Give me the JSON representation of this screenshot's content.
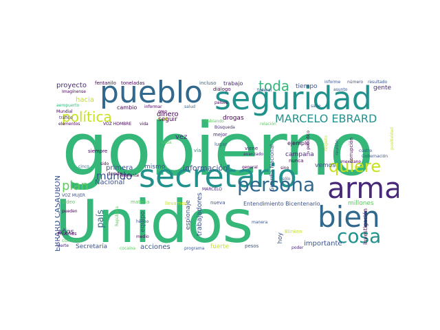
{
  "palette": {
    "green": "#35b779",
    "teal": "#21918c",
    "blue": "#31688e",
    "navy": "#3b528b",
    "purple": "#440154",
    "violet": "#482878",
    "yellow": "#c7e020",
    "lime": "#90d743",
    "light_green": "#5ec962"
  },
  "words": {
    "gobierno": "gobierno",
    "unidos": "Unidos",
    "seguridad": "seguridad",
    "secretario": "secretario",
    "pueblo": "pueblo",
    "arma": "arma",
    "bien": "bien",
    "persona": "persona",
    "marcelo_ebrard": "MARCELO EBRARD",
    "cosa": "cosa",
    "quiere": "quiere",
    "toda": "toda",
    "politica": "política",
    "plan": "plan",
    "mundo": "mundo",
    "ebrard_casaubon": "EBRARD CASAUBON",
    "pais": "país",
    "proyecto": "proyecto",
    "fentanilo": "fentanilo",
    "toneladas": "toneladas",
    "incluso": "incluso",
    "trabajo": "trabajo",
    "tiempo": "tiempo",
    "informe": "informe",
    "numero": "número",
    "resultado": "resultado",
    "imaginense": "Imagínense",
    "dialogo": "diálogo",
    "federal": "federal",
    "asunto": "asunto",
    "gente": "gente",
    "aeropuerto": "aeropuerto",
    "hacia": "hacia",
    "cambio": "cambio",
    "informar": "informar",
    "salud": "salud",
    "paises": "países",
    "sabe": "sabe",
    "mundial": "Mundial",
    "voz_hombre": "VOZ HOMBRE",
    "elementos": "elementos",
    "cual": "Cuál",
    "vida": "vida",
    "dinero": "dinero",
    "drogas": "drogas",
    "creo": "creo",
    "busqueda": "Búsqueda",
    "relacion": "relación",
    "seguir": "seguir",
    "hablando": "hablando",
    "periodico": "periódico",
    "respeto": "respeto",
    "reunion": "reunión",
    "siempre": "siempre",
    "cada": "cada",
    "vez": "vez",
    "mejor": "mejor",
    "via": "vía",
    "lugar": "lugar",
    "ejemplo": "ejemplo",
    "corrupcion": "corrupción",
    "cinco": "cinco",
    "sido": "sido",
    "primera": "primera",
    "mismo": "mismo",
    "informacion": "información",
    "viene": "viene",
    "avanzado": "avanzado",
    "campana": "campaña",
    "nunca": "nunca",
    "donde": "donde",
    "general": "general",
    "sino": "sino",
    "vemos": "vemos",
    "nacional": "Nacional",
    "adelante": "adelante",
    "guardia_nacional": "Guardia Nacional",
    "solo": "sólo",
    "mexicano": "mexicano",
    "anos": "años",
    "video": "video",
    "voz_mujer": "VOZ MUJER",
    "marcelo": "MARCELO",
    "materia": "materia",
    "llevamos": "llevamos",
    "trabajadores": "trabajadores",
    "nueva": "nueva",
    "entendimiento": "Entendimiento Bicentenario",
    "millones": "millones",
    "pueden": "pueden",
    "republica": "República",
    "equipo": "equipo",
    "espionaje": "espionaje",
    "hecho": "hecho",
    "manera": "manera",
    "hoy": "hoy",
    "investigacion": "investigación",
    "muchas": "muchas",
    "conocer": "conocer",
    "medio": "medio",
    "blinken": "Blinken",
    "secretaria": "Secretaría",
    "acciones": "acciones",
    "importante": "importante",
    "fuerte": "fuerte",
    "parte": "parte",
    "cocaina": "cocaína",
    "trabajando": "trabajando",
    "programa": "programa",
    "pesos": "pesos",
    "poder": "poder",
    "trafico": "tráfico",
    "gran": "gran",
    "fiscalia": "fiscalía",
    "positividad": "positividad",
    "cuatro": "cuatro",
    "gobernacion": "Gobernación",
    "dolares": "dólares",
    "armas_left": "armas",
    "mexico_right": "México"
  }
}
